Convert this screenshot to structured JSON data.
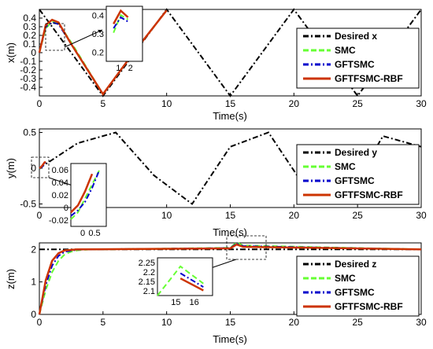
{
  "chart_data": [
    {
      "type": "line",
      "ylabel": "x(m)",
      "xlabel": "Time(s)",
      "xlim": [
        0,
        30
      ],
      "ylim": [
        -0.5,
        0.5
      ],
      "xticks": [
        0,
        5,
        10,
        15,
        20,
        25,
        30
      ],
      "yticks": [
        -0.4,
        -0.3,
        -0.2,
        -0.1,
        0,
        0.1,
        0.2,
        0.3,
        0.4
      ],
      "xticklabels": [
        "0",
        "5",
        "10",
        "15",
        "20",
        "25",
        "30"
      ],
      "yticklabels": [
        "-0.4",
        "-0.3",
        "-0.2",
        "-0.1",
        "0",
        "0.1",
        "0.2",
        "0.3",
        "0.4"
      ],
      "grid": false,
      "legend_position": "right",
      "series": [
        {
          "name": "Desired x",
          "color": "#000000",
          "style": "dash-dot",
          "x": [
            0,
            2.5,
            5,
            7.5,
            10,
            12.5,
            15,
            17.5,
            20,
            22.5,
            25,
            27.5,
            30
          ],
          "y": [
            0.5,
            0.0,
            -0.5,
            0.0,
            0.5,
            0.0,
            -0.5,
            0.0,
            0.5,
            0.0,
            -0.5,
            0.0,
            0.5
          ]
        },
        {
          "name": "SMC",
          "color": "#66ff33",
          "style": "dashed",
          "x": [
            0,
            0.5,
            1.0,
            1.5,
            2.5,
            5,
            7.5,
            10
          ],
          "y": [
            0.0,
            0.28,
            0.36,
            0.34,
            0.12,
            -0.48,
            0.02,
            0.49
          ]
        },
        {
          "name": "GFTSMC",
          "color": "#0000cc",
          "style": "dash-dot",
          "x": [
            0,
            0.5,
            1.0,
            1.5,
            2.5,
            5,
            7.5,
            10
          ],
          "y": [
            0.0,
            0.3,
            0.35,
            0.33,
            0.1,
            -0.48,
            0.02,
            0.49
          ]
        },
        {
          "name": "GFTFSMC-RBF",
          "color": "#cc3300",
          "style": "solid",
          "x": [
            0,
            0.5,
            1.0,
            1.5,
            2.5,
            5,
            7.5,
            10
          ],
          "y": [
            0.0,
            0.32,
            0.38,
            0.35,
            0.1,
            -0.48,
            0.02,
            0.49
          ]
        }
      ],
      "inset": {
        "xlim": [
          0,
          2.5
        ],
        "ylim": [
          0.15,
          0.4
        ],
        "xticklabels": [
          "1",
          "2"
        ],
        "yticklabels": [
          "0.2",
          "0.3",
          "0.4"
        ]
      }
    },
    {
      "type": "line",
      "ylabel": "y(m)",
      "xlabel": "Time(s)",
      "xlim": [
        0,
        30
      ],
      "ylim": [
        -0.55,
        0.55
      ],
      "xticks": [
        0,
        5,
        10,
        15,
        20,
        25,
        30
      ],
      "yticks": [
        -0.5,
        0,
        0.5
      ],
      "xticklabels": [
        "0",
        "5",
        "10",
        "15",
        "20",
        "25",
        "30"
      ],
      "yticklabels": [
        "-0.5",
        "0",
        "0.5"
      ],
      "grid": false,
      "legend_position": "right",
      "series": [
        {
          "name": "Desired y",
          "color": "#000000",
          "style": "dash-dot",
          "x": [
            0,
            3,
            6,
            9,
            12,
            15,
            18,
            21,
            24,
            27,
            30
          ],
          "y": [
            0,
            0.35,
            0.5,
            -0.1,
            -0.5,
            0.3,
            0.5,
            -0.3,
            -0.45,
            0.45,
            0.3
          ]
        },
        {
          "name": "SMC",
          "color": "#66ff33",
          "style": "dashed",
          "x": [
            0,
            0.1,
            0.2,
            0.3,
            0.4,
            0.5
          ],
          "y": [
            -0.01,
            0.0,
            0.02,
            0.04,
            0.06,
            0.08
          ]
        },
        {
          "name": "GFTSMC",
          "color": "#0000cc",
          "style": "dash-dot",
          "x": [
            0,
            0.1,
            0.2,
            0.3,
            0.4,
            0.5
          ],
          "y": [
            -0.005,
            0.003,
            0.015,
            0.035,
            0.06,
            0.08
          ]
        },
        {
          "name": "GFTFSMC-RBF",
          "color": "#cc3300",
          "style": "solid",
          "x": [
            0,
            0.1,
            0.2,
            0.3,
            0.4,
            0.5
          ],
          "y": [
            0.0,
            0.01,
            0.03,
            0.055,
            0.08,
            0.09
          ]
        }
      ],
      "inset": {
        "xlim": [
          0,
          0.5
        ],
        "ylim": [
          -0.02,
          0.07
        ],
        "xticklabels": [
          "0",
          "0.5"
        ],
        "yticklabels": [
          "-0.02",
          "0",
          "0.02",
          "0.04",
          "0.06"
        ]
      }
    },
    {
      "type": "line",
      "ylabel": "z(m)",
      "xlabel": "Time(s)",
      "xlim": [
        0,
        30
      ],
      "ylim": [
        0,
        2.2
      ],
      "xticks": [
        0,
        5,
        10,
        15,
        20,
        25,
        30
      ],
      "yticks": [
        0,
        1,
        2
      ],
      "xticklabels": [
        "0",
        "5",
        "10",
        "15",
        "20",
        "25",
        "30"
      ],
      "yticklabels": [
        "0",
        "1",
        "2"
      ],
      "grid": false,
      "legend_position": "right",
      "series": [
        {
          "name": "Desired z",
          "color": "#000000",
          "style": "dash-dot",
          "x": [
            0,
            30
          ],
          "y": [
            2,
            2
          ]
        },
        {
          "name": "SMC",
          "color": "#66ff33",
          "style": "dashed",
          "x": [
            0,
            0.5,
            1,
            1.5,
            2,
            2.5,
            3,
            4,
            5,
            15,
            15.5,
            16,
            30
          ],
          "y": [
            0,
            0.75,
            1.3,
            1.65,
            1.85,
            1.93,
            1.97,
            2.0,
            2.0,
            2.05,
            2.22,
            2.12,
            2.0
          ]
        },
        {
          "name": "GFTSMC",
          "color": "#0000cc",
          "style": "dash-dot",
          "x": [
            0,
            0.5,
            1,
            1.5,
            2,
            3,
            4,
            15,
            15.5,
            16,
            30
          ],
          "y": [
            0,
            0.9,
            1.5,
            1.8,
            1.93,
            1.99,
            2.0,
            2.04,
            2.18,
            2.1,
            2.0
          ]
        },
        {
          "name": "GFTFSMC-RBF",
          "color": "#cc3300",
          "style": "solid",
          "x": [
            0,
            0.5,
            1,
            1.5,
            2,
            3,
            15,
            15.5,
            16,
            30
          ],
          "y": [
            0,
            1.05,
            1.65,
            1.88,
            1.97,
            2.0,
            2.03,
            2.15,
            2.08,
            2.0
          ]
        }
      ],
      "inset": {
        "xlim": [
          15,
          16.2
        ],
        "ylim": [
          2.05,
          2.27
        ],
        "xticklabels": [
          "15",
          "16"
        ],
        "yticklabels": [
          "2.1",
          "2.15",
          "2.2",
          "2.25"
        ]
      }
    }
  ]
}
